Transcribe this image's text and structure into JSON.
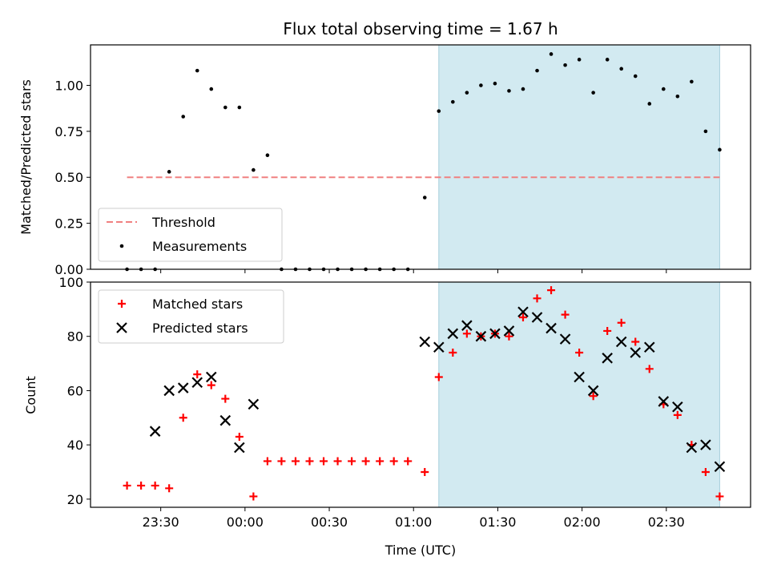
{
  "chart_data": [
    {
      "type": "scatter",
      "title": "Flux total observing time = 1.67 h",
      "ylabel": "Matched/Predicted stars",
      "xlabel": "",
      "ylim": [
        0,
        1.22
      ],
      "x_range": [
        "23:05",
        "03:00"
      ],
      "yticks": [
        "0.00",
        "0.25",
        "0.50",
        "0.75",
        "1.00"
      ],
      "shaded_span": [
        "01:09",
        "02:49"
      ],
      "shade_color": "#add8e6",
      "legend": {
        "placement": "lower-left",
        "entries": [
          "Threshold",
          "Measurements"
        ]
      },
      "threshold": {
        "name": "Threshold",
        "value": 0.5,
        "x": [
          "23:18",
          "02:49"
        ],
        "color": "#f08080"
      },
      "series": [
        {
          "name": "Measurements",
          "color": "#000000",
          "x": [
            "23:18",
            "23:23",
            "23:28",
            "23:33",
            "23:38",
            "23:43",
            "23:48",
            "23:53",
            "23:58",
            "00:03",
            "00:08",
            "00:13",
            "00:18",
            "00:23",
            "00:28",
            "00:33",
            "00:38",
            "00:43",
            "00:48",
            "00:53",
            "00:58",
            "01:04",
            "01:09",
            "01:14",
            "01:19",
            "01:24",
            "01:29",
            "01:34",
            "01:39",
            "01:44",
            "01:49",
            "01:54",
            "01:59",
            "02:04",
            "02:09",
            "02:14",
            "02:19",
            "02:24",
            "02:29",
            "02:34",
            "02:39",
            "02:44",
            "02:49"
          ],
          "y": [
            0,
            0,
            0,
            0.53,
            0.83,
            1.08,
            0.98,
            0.88,
            0.88,
            0.54,
            0.62,
            0,
            0,
            0,
            0,
            0,
            0,
            0,
            0,
            0,
            0,
            0.39,
            0.86,
            0.91,
            0.96,
            1.0,
            1.01,
            0.97,
            0.98,
            1.08,
            1.17,
            1.11,
            1.14,
            0.96,
            1.14,
            1.09,
            1.05,
            0.9,
            0.98,
            0.94,
            1.02,
            0.75,
            0.65
          ]
        }
      ]
    },
    {
      "type": "scatter",
      "title": "",
      "ylabel": "Count",
      "xlabel": "Time (UTC)",
      "ylim": [
        17,
        100
      ],
      "x_range": [
        "23:05",
        "03:00"
      ],
      "yticks": [
        "20",
        "40",
        "60",
        "80",
        "100"
      ],
      "xticks": [
        "23:30",
        "00:00",
        "00:30",
        "01:00",
        "01:30",
        "02:00",
        "02:30"
      ],
      "shaded_span": [
        "01:09",
        "02:49"
      ],
      "shade_color": "#add8e6",
      "legend": {
        "placement": "upper-left",
        "entries": [
          "Matched stars",
          "Predicted stars"
        ]
      },
      "series": [
        {
          "name": "Matched stars",
          "marker": "plus",
          "color": "#ff0000",
          "x": [
            "23:18",
            "23:23",
            "23:28",
            "23:33",
            "23:38",
            "23:43",
            "23:48",
            "23:53",
            "23:58",
            "00:03",
            "00:08",
            "00:13",
            "00:18",
            "00:23",
            "00:28",
            "00:33",
            "00:38",
            "00:43",
            "00:48",
            "00:53",
            "00:58",
            "01:04",
            "01:09",
            "01:14",
            "01:19",
            "01:24",
            "01:29",
            "01:34",
            "01:39",
            "01:44",
            "01:49",
            "01:54",
            "01:59",
            "02:04",
            "02:09",
            "02:14",
            "02:19",
            "02:24",
            "02:29",
            "02:34",
            "02:39",
            "02:44",
            "02:49"
          ],
          "y": [
            25,
            25,
            25,
            24,
            50,
            66,
            62,
            57,
            43,
            21,
            34,
            34,
            34,
            34,
            34,
            34,
            34,
            34,
            34,
            34,
            34,
            30,
            65,
            74,
            81,
            80,
            81,
            80,
            87,
            94,
            97,
            88,
            74,
            58,
            82,
            85,
            78,
            68,
            55,
            51,
            40,
            30,
            21
          ]
        },
        {
          "name": "Predicted stars",
          "marker": "x",
          "color": "#000000",
          "x": [
            "23:28",
            "23:33",
            "23:38",
            "23:43",
            "23:48",
            "23:53",
            "23:58",
            "00:03",
            "01:04",
            "01:09",
            "01:14",
            "01:19",
            "01:24",
            "01:29",
            "01:34",
            "01:39",
            "01:44",
            "01:49",
            "01:54",
            "01:59",
            "02:04",
            "02:09",
            "02:14",
            "02:19",
            "02:24",
            "02:29",
            "02:34",
            "02:39",
            "02:44",
            "02:49"
          ],
          "y": [
            45,
            60,
            61,
            63,
            65,
            49,
            39,
            55,
            78,
            76,
            81,
            84,
            80,
            81,
            82,
            89,
            87,
            83,
            79,
            65,
            60,
            72,
            78,
            74,
            76,
            56,
            54,
            39,
            40,
            32
          ]
        }
      ]
    }
  ]
}
